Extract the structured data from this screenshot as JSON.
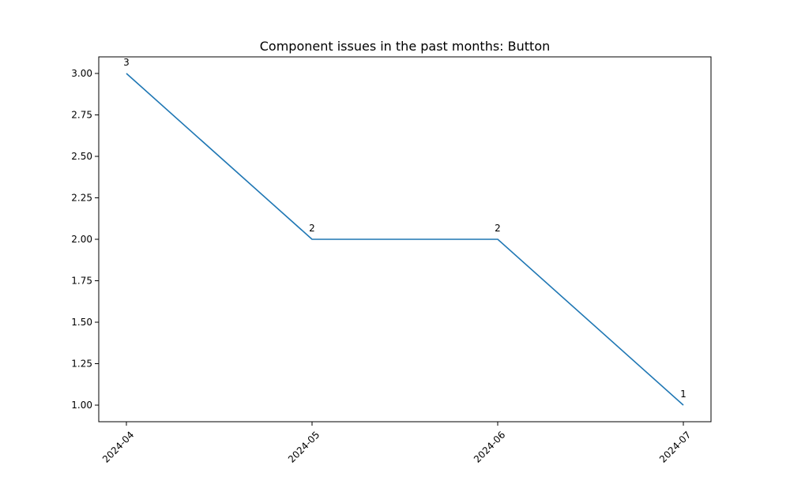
{
  "chart_data": {
    "type": "line",
    "title": "Component issues in the past months: Button",
    "xlabel": "",
    "ylabel": "",
    "categories": [
      "2024-04",
      "2024-05",
      "2024-06",
      "2024-07"
    ],
    "series": [
      {
        "values": [
          3,
          2,
          2,
          1
        ],
        "data_labels": [
          "3",
          "2",
          "2",
          "1"
        ],
        "color": "#1f77b4"
      }
    ],
    "ylim": [
      0.9,
      3.1
    ],
    "y_ticks": [
      1.0,
      1.25,
      1.5,
      1.75,
      2.0,
      2.25,
      2.5,
      2.75,
      3.0
    ],
    "y_tick_labels": [
      "1.00",
      "1.25",
      "1.50",
      "1.75",
      "2.00",
      "2.25",
      "2.50",
      "2.75",
      "3.00"
    ],
    "x_tick_rotation_deg": 45,
    "grid": false,
    "legend": "none"
  }
}
